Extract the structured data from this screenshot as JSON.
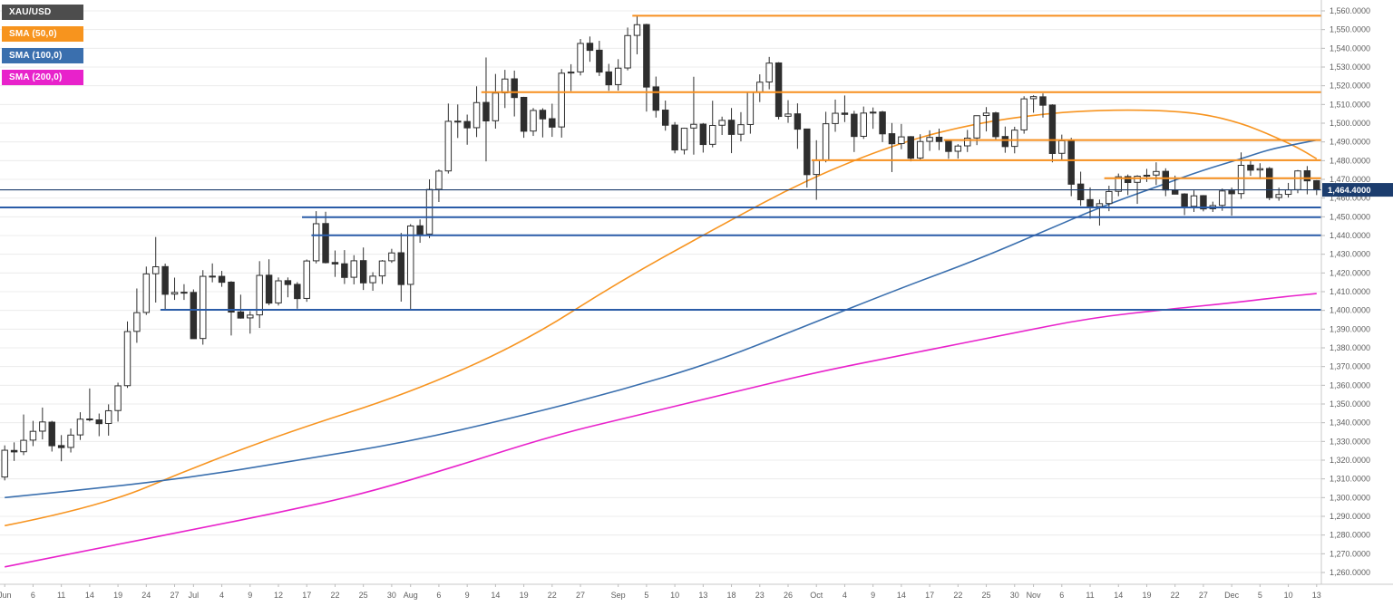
{
  "instrument": {
    "symbol": "XAU/USD"
  },
  "legend": [
    {
      "label": "XAU/USD",
      "bg": "#4d4d4d",
      "fg": "#ffffff"
    },
    {
      "label": "SMA (50,0)",
      "bg": "#f7941e",
      "fg": "#ffffff"
    },
    {
      "label": "SMA (100,0)",
      "bg": "#3a6fae",
      "fg": "#ffffff"
    },
    {
      "label": "SMA (200,0)",
      "bg": "#e822cb",
      "fg": "#ffffff"
    }
  ],
  "current_price": {
    "value": 1464.4,
    "label": "1,464.4000"
  },
  "colors": {
    "up_candle": "#ffffff",
    "down_candle": "#2e2e2e",
    "candle_outline": "#2e2e2e",
    "sma50": "#f79420",
    "sma100": "#3a6fae",
    "sma200": "#e822cb",
    "resistance_orange": "#f78f1e",
    "support_blue": "#2a5ca8",
    "price_line": "#1c3d6e",
    "price_tag_bg": "#1c3d6e",
    "price_tag_text": "#ffffff",
    "grid": "#ececec",
    "axis_border": "#c9c9c9",
    "axis_text": "#5e5e5e",
    "tick": "#bbbbbb"
  },
  "chart_data": {
    "type": "candlestick",
    "symbol": "XAU/USD",
    "timeframe": "daily",
    "title": "",
    "ylim": [
      1260,
      1560
    ],
    "y_step": 10,
    "y_label_decimals": 4,
    "grid": "horizontal",
    "legend_position": "top-left",
    "ohlc": [
      [
        1311.0,
        1327.9,
        1309.2,
        1325.3
      ],
      [
        1325.2,
        1329.5,
        1319.6,
        1324.4
      ],
      [
        1324.5,
        1344.4,
        1322.7,
        1330.6
      ],
      [
        1330.7,
        1341.0,
        1327.5,
        1335.4
      ],
      [
        1335.5,
        1348.1,
        1331.1,
        1340.4
      ],
      [
        1340.3,
        1341.0,
        1324.6,
        1327.7
      ],
      [
        1327.8,
        1333.4,
        1319.4,
        1326.7
      ],
      [
        1326.8,
        1336.9,
        1324.1,
        1333.4
      ],
      [
        1333.5,
        1345.6,
        1330.8,
        1341.9
      ],
      [
        1342.0,
        1358.3,
        1340.7,
        1341.6
      ],
      [
        1341.5,
        1344.9,
        1332.8,
        1339.5
      ],
      [
        1339.6,
        1349.8,
        1333.1,
        1346.4
      ],
      [
        1346.5,
        1361.4,
        1340.6,
        1359.7
      ],
      [
        1359.8,
        1394.1,
        1358.6,
        1388.7
      ],
      [
        1388.8,
        1411.7,
        1382.7,
        1398.8
      ],
      [
        1398.9,
        1423.4,
        1397.6,
        1419.5
      ],
      [
        1419.6,
        1439.2,
        1404.2,
        1423.3
      ],
      [
        1423.4,
        1425.0,
        1400.6,
        1408.6
      ],
      [
        1408.7,
        1417.5,
        1405.6,
        1409.6
      ],
      [
        1409.7,
        1414.0,
        1405.6,
        1409.5
      ],
      [
        1409.6,
        1411.2,
        1384.9,
        1384.9
      ],
      [
        1385.0,
        1421.5,
        1381.7,
        1418.2
      ],
      [
        1418.3,
        1425.1,
        1415.0,
        1418.1
      ],
      [
        1418.2,
        1421.1,
        1412.6,
        1415.0
      ],
      [
        1415.1,
        1415.6,
        1386.6,
        1399.1
      ],
      [
        1399.2,
        1408.4,
        1395.6,
        1395.9
      ],
      [
        1396.0,
        1399.6,
        1387.6,
        1397.5
      ],
      [
        1397.6,
        1426.3,
        1390.6,
        1418.7
      ],
      [
        1418.8,
        1427.3,
        1402.8,
        1403.9
      ],
      [
        1404.0,
        1417.6,
        1402.6,
        1415.8
      ],
      [
        1415.9,
        1417.6,
        1407.0,
        1413.8
      ],
      [
        1413.9,
        1415.1,
        1400.9,
        1406.3
      ],
      [
        1406.4,
        1427.2,
        1404.6,
        1426.4
      ],
      [
        1426.5,
        1453.0,
        1425.1,
        1446.3
      ],
      [
        1446.4,
        1452.7,
        1425.1,
        1425.5
      ],
      [
        1425.6,
        1432.0,
        1417.9,
        1424.8
      ],
      [
        1424.9,
        1432.2,
        1414.1,
        1417.6
      ],
      [
        1417.7,
        1429.5,
        1413.9,
        1426.5
      ],
      [
        1426.6,
        1433.6,
        1410.9,
        1414.7
      ],
      [
        1414.8,
        1420.4,
        1410.5,
        1418.3
      ],
      [
        1418.4,
        1426.9,
        1414.1,
        1426.4
      ],
      [
        1426.5,
        1432.9,
        1425.4,
        1430.7
      ],
      [
        1430.8,
        1441.4,
        1404.7,
        1413.8
      ],
      [
        1413.9,
        1446.1,
        1400.6,
        1445.1
      ],
      [
        1445.2,
        1448.6,
        1436.1,
        1440.7
      ],
      [
        1440.8,
        1470.0,
        1438.6,
        1464.6
      ],
      [
        1464.7,
        1475.3,
        1457.9,
        1474.4
      ],
      [
        1474.5,
        1510.5,
        1473.1,
        1501.0
      ],
      [
        1501.1,
        1510.0,
        1492.1,
        1500.8
      ],
      [
        1500.9,
        1504.6,
        1488.5,
        1497.5
      ],
      [
        1497.6,
        1519.7,
        1492.6,
        1511.0
      ],
      [
        1511.1,
        1535.1,
        1479.6,
        1501.2
      ],
      [
        1501.3,
        1526.3,
        1497.1,
        1516.1
      ],
      [
        1516.2,
        1528.5,
        1508.1,
        1523.6
      ],
      [
        1523.7,
        1528.1,
        1503.6,
        1513.7
      ],
      [
        1513.8,
        1514.1,
        1492.2,
        1495.7
      ],
      [
        1495.8,
        1508.1,
        1493.2,
        1506.8
      ],
      [
        1506.9,
        1508.0,
        1492.4,
        1502.3
      ],
      [
        1502.4,
        1510.4,
        1492.7,
        1497.9
      ],
      [
        1498.0,
        1528.9,
        1492.3,
        1526.7
      ],
      [
        1526.8,
        1531.5,
        1517.2,
        1527.3
      ],
      [
        1527.4,
        1545.0,
        1525.5,
        1542.6
      ],
      [
        1542.7,
        1546.3,
        1532.8,
        1538.9
      ],
      [
        1539.0,
        1544.0,
        1525.2,
        1527.3
      ],
      [
        1527.4,
        1531.7,
        1517.3,
        1520.5
      ],
      [
        1520.6,
        1534.2,
        1517.4,
        1529.4
      ],
      [
        1529.5,
        1551.1,
        1528.2,
        1546.8
      ],
      [
        1546.9,
        1557.1,
        1536.8,
        1552.6
      ],
      [
        1552.7,
        1553.1,
        1506.2,
        1519.3
      ],
      [
        1519.4,
        1524.9,
        1503.0,
        1506.9
      ],
      [
        1507.0,
        1512.1,
        1496.0,
        1498.9
      ],
      [
        1499.0,
        1500.6,
        1483.9,
        1485.7
      ],
      [
        1485.8,
        1497.6,
        1483.3,
        1497.3
      ],
      [
        1497.4,
        1524.8,
        1483.2,
        1499.4
      ],
      [
        1499.5,
        1500.1,
        1484.3,
        1488.6
      ],
      [
        1488.7,
        1512.0,
        1487.1,
        1498.8
      ],
      [
        1498.9,
        1503.5,
        1493.7,
        1501.5
      ],
      [
        1501.6,
        1508.1,
        1484.0,
        1494.0
      ],
      [
        1494.1,
        1505.9,
        1490.3,
        1499.2
      ],
      [
        1499.3,
        1516.9,
        1494.4,
        1516.6
      ],
      [
        1516.7,
        1526.1,
        1511.3,
        1521.9
      ],
      [
        1522.0,
        1535.4,
        1518.1,
        1532.1
      ],
      [
        1532.2,
        1532.6,
        1502.0,
        1503.6
      ],
      [
        1503.7,
        1512.3,
        1500.2,
        1504.9
      ],
      [
        1505.0,
        1510.6,
        1486.3,
        1496.8
      ],
      [
        1496.9,
        1497.1,
        1465.6,
        1472.5
      ],
      [
        1472.6,
        1490.9,
        1459.1,
        1480.1
      ],
      [
        1480.2,
        1506.1,
        1479.1,
        1499.7
      ],
      [
        1499.8,
        1512.6,
        1495.4,
        1505.3
      ],
      [
        1505.4,
        1514.8,
        1500.6,
        1504.7
      ],
      [
        1504.8,
        1506.6,
        1484.6,
        1492.9
      ],
      [
        1493.0,
        1508.9,
        1491.6,
        1505.4
      ],
      [
        1505.5,
        1508.4,
        1497.0,
        1505.9
      ],
      [
        1506.0,
        1506.6,
        1489.9,
        1494.3
      ],
      [
        1494.4,
        1500.1,
        1473.9,
        1489.0
      ],
      [
        1489.1,
        1499.6,
        1486.1,
        1492.7
      ],
      [
        1492.8,
        1493.1,
        1479.6,
        1481.3
      ],
      [
        1481.4,
        1494.1,
        1480.2,
        1490.2
      ],
      [
        1490.3,
        1496.2,
        1485.2,
        1492.4
      ],
      [
        1492.5,
        1497.1,
        1485.6,
        1490.2
      ],
      [
        1490.3,
        1491.1,
        1481.0,
        1484.9
      ],
      [
        1485.0,
        1488.8,
        1481.1,
        1487.8
      ],
      [
        1487.9,
        1496.4,
        1484.6,
        1492.0
      ],
      [
        1492.1,
        1504.1,
        1488.3,
        1504.0
      ],
      [
        1504.1,
        1508.6,
        1495.6,
        1505.4
      ],
      [
        1505.5,
        1506.1,
        1490.6,
        1492.8
      ],
      [
        1492.9,
        1498.2,
        1484.2,
        1487.5
      ],
      [
        1487.6,
        1498.1,
        1483.9,
        1496.3
      ],
      [
        1496.4,
        1514.4,
        1494.4,
        1513.0
      ],
      [
        1513.1,
        1514.9,
        1505.6,
        1514.2
      ],
      [
        1514.1,
        1515.9,
        1503.0,
        1509.6
      ],
      [
        1509.7,
        1510.1,
        1479.1,
        1483.8
      ],
      [
        1483.9,
        1493.9,
        1479.9,
        1490.6
      ],
      [
        1490.7,
        1492.2,
        1461.0,
        1467.4
      ],
      [
        1467.5,
        1474.1,
        1455.9,
        1459.1
      ],
      [
        1459.2,
        1465.7,
        1449.0,
        1455.4
      ],
      [
        1455.5,
        1459.2,
        1445.3,
        1457.0
      ],
      [
        1457.1,
        1466.6,
        1453.0,
        1463.5
      ],
      [
        1463.6,
        1473.1,
        1461.0,
        1471.4
      ],
      [
        1471.5,
        1472.6,
        1461.6,
        1468.3
      ],
      [
        1468.4,
        1472.2,
        1456.9,
        1471.7
      ],
      [
        1471.8,
        1475.6,
        1468.6,
        1472.2
      ],
      [
        1472.3,
        1479.1,
        1467.0,
        1474.2
      ],
      [
        1474.3,
        1475.9,
        1461.0,
        1464.3
      ],
      [
        1464.4,
        1472.0,
        1462.0,
        1462.1
      ],
      [
        1462.2,
        1462.6,
        1450.9,
        1455.5
      ],
      [
        1455.6,
        1464.1,
        1452.6,
        1461.2
      ],
      [
        1461.3,
        1461.6,
        1452.9,
        1454.2
      ],
      [
        1454.3,
        1458.1,
        1452.6,
        1456.0
      ],
      [
        1456.1,
        1465.1,
        1453.2,
        1463.8
      ],
      [
        1463.9,
        1465.6,
        1450.6,
        1462.3
      ],
      [
        1462.4,
        1484.4,
        1459.6,
        1477.5
      ],
      [
        1477.6,
        1480.1,
        1471.9,
        1474.9
      ],
      [
        1475.0,
        1478.6,
        1470.1,
        1475.7
      ],
      [
        1475.8,
        1476.6,
        1458.9,
        1460.2
      ],
      [
        1460.3,
        1465.6,
        1458.6,
        1461.9
      ],
      [
        1462.0,
        1468.1,
        1460.3,
        1464.4
      ],
      [
        1464.5,
        1475.0,
        1462.6,
        1474.5
      ],
      [
        1474.6,
        1477.1,
        1462.0,
        1469.2
      ],
      [
        1469.3,
        1469.6,
        1461.6,
        1464.4
      ]
    ],
    "x_ticks": [
      {
        "i": 0,
        "label": "Jun"
      },
      {
        "i": 3,
        "label": "6"
      },
      {
        "i": 6,
        "label": "11"
      },
      {
        "i": 9,
        "label": "14"
      },
      {
        "i": 12,
        "label": "19"
      },
      {
        "i": 15,
        "label": "24"
      },
      {
        "i": 18,
        "label": "27"
      },
      {
        "i": 20,
        "label": "Jul"
      },
      {
        "i": 23,
        "label": "4"
      },
      {
        "i": 26,
        "label": "9"
      },
      {
        "i": 29,
        "label": "12"
      },
      {
        "i": 32,
        "label": "17"
      },
      {
        "i": 35,
        "label": "22"
      },
      {
        "i": 38,
        "label": "25"
      },
      {
        "i": 41,
        "label": "30"
      },
      {
        "i": 43,
        "label": "Aug"
      },
      {
        "i": 46,
        "label": "6"
      },
      {
        "i": 49,
        "label": "9"
      },
      {
        "i": 52,
        "label": "14"
      },
      {
        "i": 55,
        "label": "19"
      },
      {
        "i": 58,
        "label": "22"
      },
      {
        "i": 61,
        "label": "27"
      },
      {
        "i": 65,
        "label": "Sep"
      },
      {
        "i": 68,
        "label": "5"
      },
      {
        "i": 71,
        "label": "10"
      },
      {
        "i": 74,
        "label": "13"
      },
      {
        "i": 77,
        "label": "18"
      },
      {
        "i": 80,
        "label": "23"
      },
      {
        "i": 83,
        "label": "26"
      },
      {
        "i": 86,
        "label": "Oct"
      },
      {
        "i": 89,
        "label": "4"
      },
      {
        "i": 92,
        "label": "9"
      },
      {
        "i": 95,
        "label": "14"
      },
      {
        "i": 98,
        "label": "17"
      },
      {
        "i": 101,
        "label": "22"
      },
      {
        "i": 104,
        "label": "25"
      },
      {
        "i": 107,
        "label": "30"
      },
      {
        "i": 109,
        "label": "Nov"
      },
      {
        "i": 112,
        "label": "6"
      },
      {
        "i": 115,
        "label": "11"
      },
      {
        "i": 118,
        "label": "14"
      },
      {
        "i": 121,
        "label": "19"
      },
      {
        "i": 124,
        "label": "22"
      },
      {
        "i": 127,
        "label": "27"
      },
      {
        "i": 130,
        "label": "Dec"
      },
      {
        "i": 133,
        "label": "5"
      },
      {
        "i": 136,
        "label": "10"
      },
      {
        "i": 139,
        "label": "13"
      }
    ],
    "sma": [
      {
        "name": "SMA (50,0)",
        "color": "#f79420",
        "points": [
          [
            0,
            1285
          ],
          [
            10,
            1295
          ],
          [
            20,
            1316
          ],
          [
            30,
            1335
          ],
          [
            43,
            1356
          ],
          [
            55,
            1383
          ],
          [
            65,
            1415
          ],
          [
            75,
            1443
          ],
          [
            85,
            1470
          ],
          [
            95,
            1490
          ],
          [
            103,
            1500
          ],
          [
            110,
            1505
          ],
          [
            116,
            1507
          ],
          [
            122,
            1507
          ],
          [
            127,
            1505
          ],
          [
            131,
            1500
          ],
          [
            134,
            1494
          ],
          [
            137,
            1487
          ],
          [
            139,
            1481
          ]
        ]
      },
      {
        "name": "SMA (100,0)",
        "color": "#3a6fae",
        "points": [
          [
            0,
            1300
          ],
          [
            10,
            1305
          ],
          [
            20,
            1311
          ],
          [
            30,
            1319
          ],
          [
            43,
            1330
          ],
          [
            55,
            1344
          ],
          [
            65,
            1357
          ],
          [
            75,
            1372
          ],
          [
            85,
            1392
          ],
          [
            95,
            1412
          ],
          [
            103,
            1427
          ],
          [
            110,
            1442
          ],
          [
            116,
            1455
          ],
          [
            122,
            1466
          ],
          [
            127,
            1475
          ],
          [
            131,
            1481
          ],
          [
            134,
            1486
          ],
          [
            137,
            1489
          ],
          [
            139,
            1491
          ]
        ]
      },
      {
        "name": "SMA (200,0)",
        "color": "#e822cb",
        "points": [
          [
            0,
            1263
          ],
          [
            10,
            1273
          ],
          [
            20,
            1283
          ],
          [
            29,
            1292
          ],
          [
            38,
            1302
          ],
          [
            48,
            1317
          ],
          [
            58,
            1333
          ],
          [
            67,
            1344
          ],
          [
            77,
            1356
          ],
          [
            86,
            1367
          ],
          [
            96,
            1377
          ],
          [
            106,
            1387
          ],
          [
            115,
            1396
          ],
          [
            124,
            1401
          ],
          [
            130,
            1404
          ],
          [
            135,
            1407
          ],
          [
            139,
            1409
          ]
        ]
      }
    ],
    "h_lines": [
      {
        "price": 1557.4,
        "from": 67,
        "color": "#f78f1e",
        "kind": "resistance"
      },
      {
        "price": 1516.6,
        "from": 51,
        "color": "#f78f1e",
        "kind": "resistance"
      },
      {
        "price": 1491.0,
        "from": 100,
        "color": "#f78f1e",
        "kind": "resistance"
      },
      {
        "price": 1480.2,
        "from": 86,
        "color": "#f78f1e",
        "kind": "resistance"
      },
      {
        "price": 1470.6,
        "from": 117,
        "color": "#f78f1e",
        "kind": "resistance"
      },
      {
        "price": 1455.0,
        "from": 0,
        "color": "#2a5ca8",
        "kind": "support"
      },
      {
        "price": 1449.8,
        "from": 32,
        "color": "#2a5ca8",
        "kind": "support"
      },
      {
        "price": 1440.1,
        "from": 33,
        "color": "#2a5ca8",
        "kind": "support"
      },
      {
        "price": 1400.3,
        "from": 17,
        "color": "#2a5ca8",
        "kind": "support"
      }
    ]
  }
}
